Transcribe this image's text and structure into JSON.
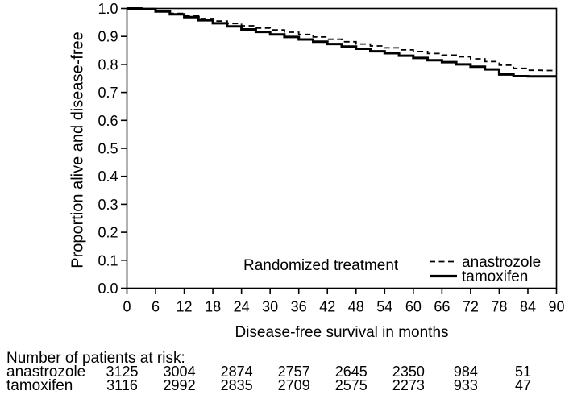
{
  "chart_data": {
    "type": "line",
    "subtype": "kaplan-meier-step",
    "title": "",
    "xlabel": "Disease-free survival in months",
    "ylabel": "Proportion alive and disease-free",
    "xlim": [
      0,
      90
    ],
    "ylim": [
      0.0,
      1.0
    ],
    "x_ticks": [
      0,
      6,
      12,
      18,
      24,
      30,
      36,
      42,
      48,
      54,
      60,
      66,
      72,
      78,
      84,
      90
    ],
    "y_ticks": [
      0.0,
      0.1,
      0.2,
      0.3,
      0.4,
      0.5,
      0.6,
      0.7,
      0.8,
      0.9,
      1.0
    ],
    "grid": false,
    "legend_title": "Randomized treatment",
    "legend_position": "inside-bottom-right",
    "line_color": "#000000",
    "series": [
      {
        "name": "anastrozole",
        "line": "dashed",
        "x": [
          0,
          3,
          6,
          9,
          12,
          15,
          18,
          21,
          24,
          27,
          30,
          33,
          36,
          39,
          42,
          45,
          48,
          51,
          54,
          57,
          60,
          63,
          66,
          69,
          72,
          75,
          78,
          81,
          84,
          87,
          90
        ],
        "y": [
          1.0,
          0.998,
          0.99,
          0.982,
          0.973,
          0.964,
          0.955,
          0.946,
          0.938,
          0.93,
          0.923,
          0.915,
          0.907,
          0.898,
          0.89,
          0.881,
          0.873,
          0.866,
          0.859,
          0.852,
          0.846,
          0.839,
          0.833,
          0.827,
          0.82,
          0.81,
          0.797,
          0.786,
          0.779,
          0.778,
          0.778
        ]
      },
      {
        "name": "tamoxifen",
        "line": "solid",
        "x": [
          0,
          3,
          6,
          9,
          12,
          15,
          18,
          21,
          24,
          27,
          30,
          33,
          36,
          39,
          42,
          45,
          48,
          51,
          54,
          57,
          60,
          63,
          66,
          69,
          72,
          75,
          78,
          81,
          84,
          87,
          90
        ],
        "y": [
          1.0,
          0.998,
          0.989,
          0.979,
          0.969,
          0.958,
          0.947,
          0.936,
          0.925,
          0.916,
          0.907,
          0.898,
          0.889,
          0.881,
          0.873,
          0.864,
          0.856,
          0.847,
          0.84,
          0.831,
          0.823,
          0.815,
          0.808,
          0.8,
          0.792,
          0.782,
          0.764,
          0.758,
          0.757,
          0.757,
          0.757
        ]
      }
    ]
  },
  "at_risk": {
    "heading": "Number of patients at risk:",
    "months": [
      0,
      12,
      24,
      36,
      48,
      60,
      72,
      84
    ],
    "rows": [
      {
        "label": "anastrozole",
        "counts": [
          3125,
          3004,
          2874,
          2757,
          2645,
          2350,
          984,
          51
        ]
      },
      {
        "label": "tamoxifen",
        "counts": [
          3116,
          2992,
          2835,
          2709,
          2575,
          2273,
          933,
          47
        ]
      }
    ]
  },
  "colors": {
    "foreground": "#000000",
    "background": "#ffffff"
  }
}
